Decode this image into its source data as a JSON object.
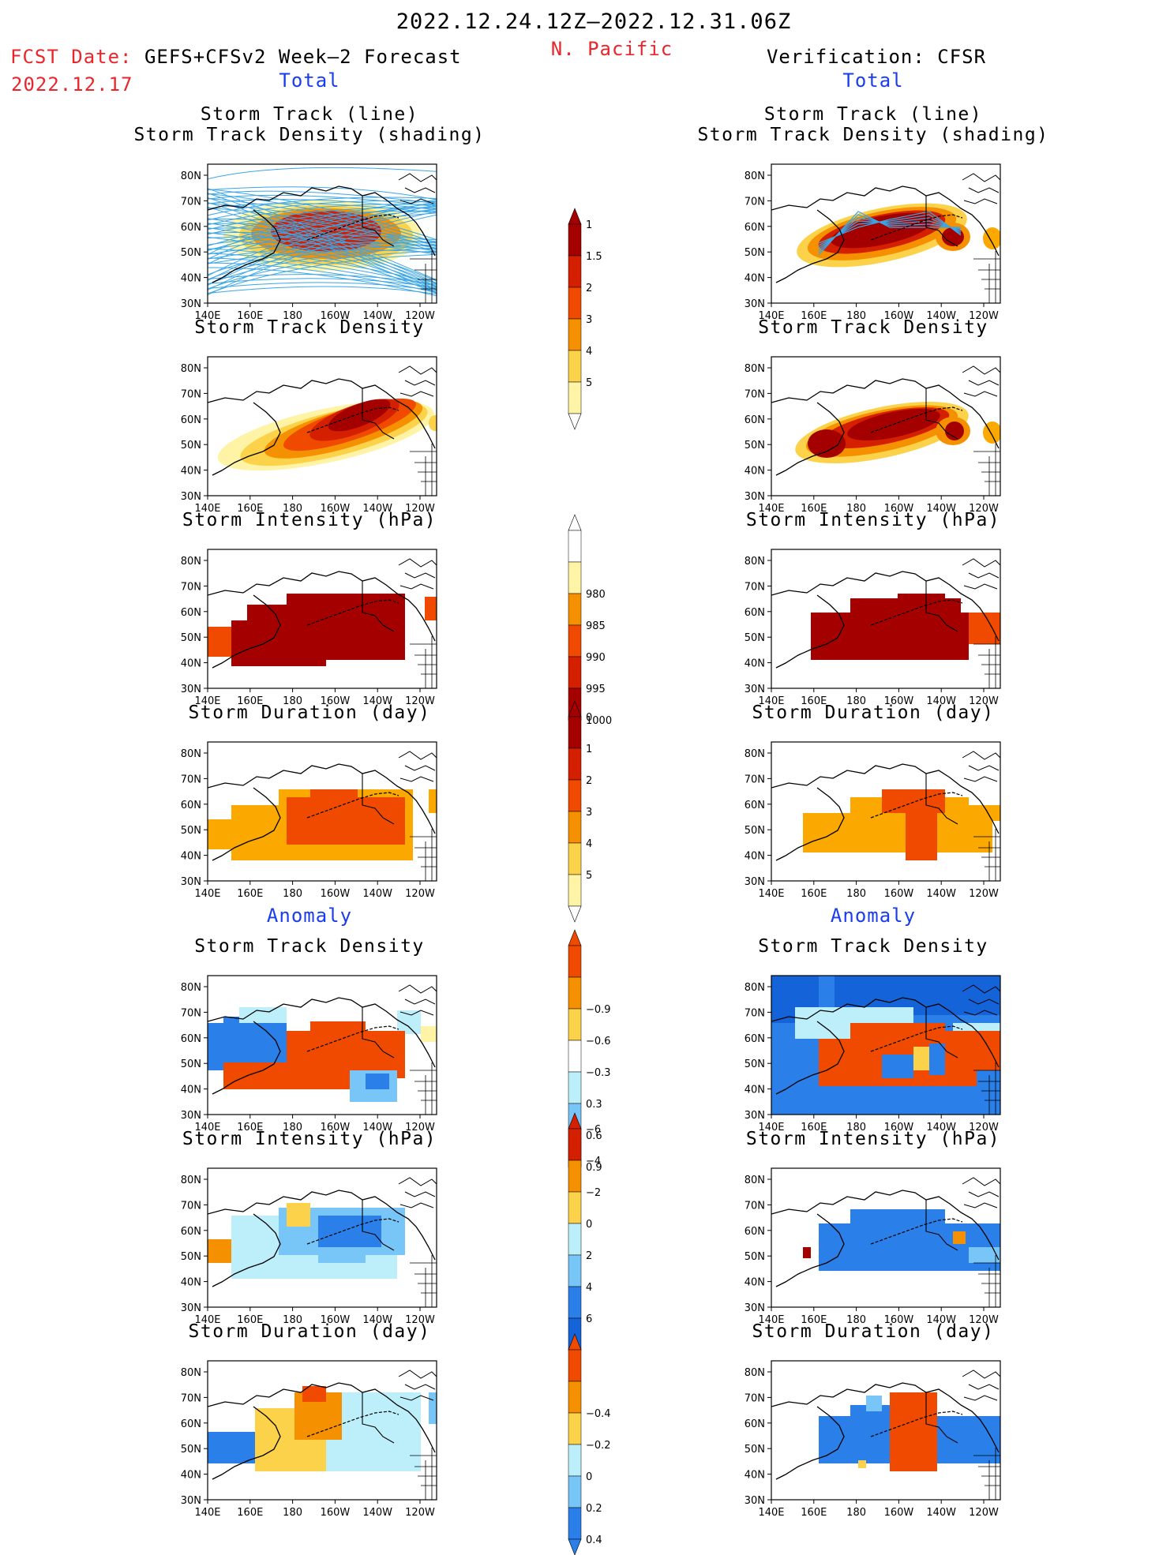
{
  "header": {
    "title": "2022.12.24.12Z–2022.12.31.06Z",
    "region": "N. Pacific",
    "fcst_label": "FCST Date:",
    "fcst_model": "GEFS+CFSv2 Week–2 Forecast",
    "fcst_date": "2022.12.17",
    "verification": "Verification: CFSR",
    "left_total": "Total",
    "right_total": "Total",
    "left_anomaly": "Anomaly",
    "right_anomaly": "Anomaly"
  },
  "panel_titles": {
    "track_line": "Storm Track (line)",
    "track_shading": "Storm Track Density (shading)",
    "density": "Storm Track Density",
    "intensity": "Storm Intensity (hPa)",
    "duration": "Storm Duration (day)"
  },
  "axes": {
    "lat_ticks": [
      "80N",
      "70N",
      "60N",
      "50N",
      "40N",
      "30N"
    ],
    "lon_ticks": [
      "140E",
      "160E",
      "180",
      "160W",
      "140W",
      "120W"
    ]
  },
  "colorbars": {
    "total_density": [
      "1",
      "1.5",
      "2",
      "3",
      "4",
      "5"
    ],
    "total_intensity": [
      "980",
      "985",
      "990",
      "995",
      "1000"
    ],
    "total_duration": [
      "0",
      "1",
      "2",
      "3",
      "4",
      "5"
    ],
    "anom_density": [
      "−0.9",
      "−0.6",
      "−0.3",
      "0.3",
      "0.6",
      "0.9"
    ],
    "anom_intensity": [
      "−6",
      "−4",
      "−2",
      "0",
      "2",
      "4",
      "6"
    ],
    "anom_duration": [
      "−0.4",
      "−0.2",
      "0",
      "0.2",
      "0.4"
    ]
  },
  "colors": {
    "dark_red": "#a50000",
    "red": "#d42000",
    "red_orange": "#f04a00",
    "orange": "#f59000",
    "light_orange": "#fba800",
    "yellow": "#fcd24a",
    "pale_yellow": "#fff3a6",
    "pale_blue": "#bdeffb",
    "light_blue": "#78c6f7",
    "blue": "#2a7fe8",
    "dark_blue": "#1463d8",
    "track_blue": "#3aa6e6"
  }
}
